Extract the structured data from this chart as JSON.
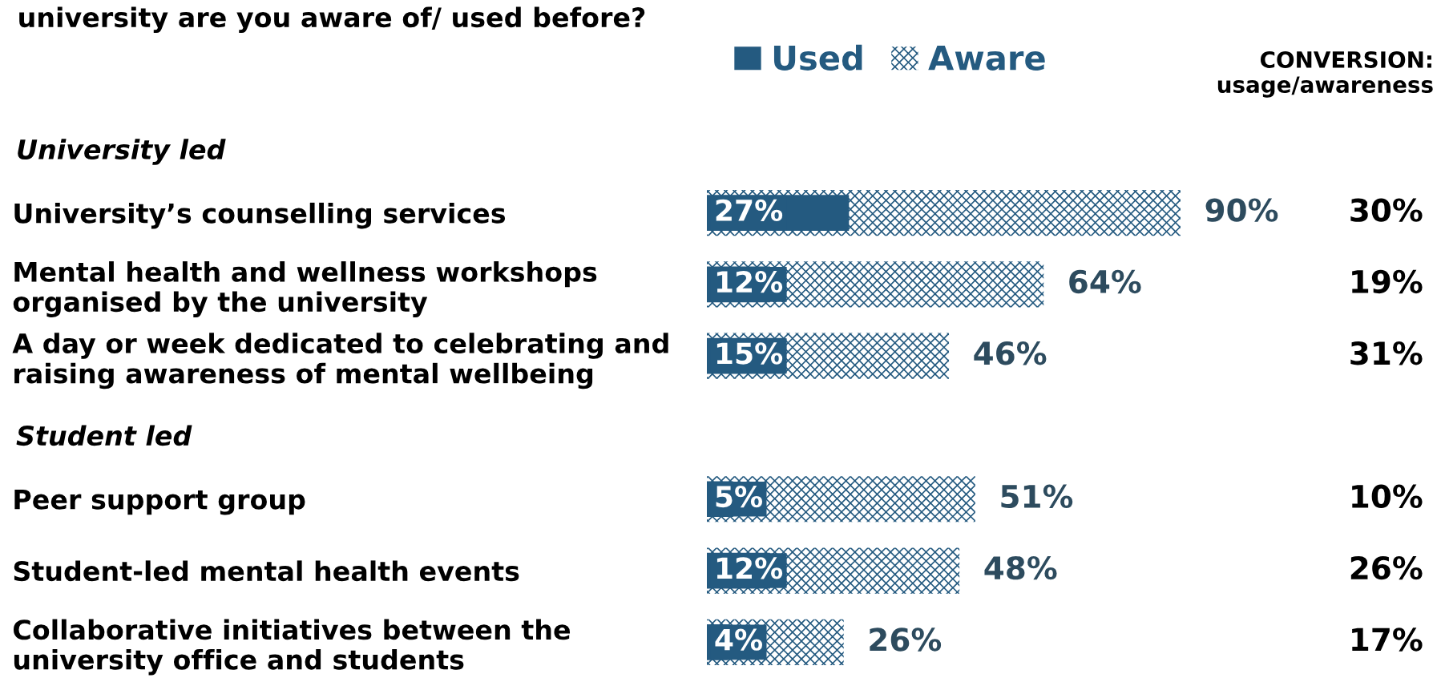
{
  "chart_data": {
    "type": "bar",
    "orientation": "horizontal",
    "title": "university are you aware of/ used before?",
    "categories": [
      null,
      "University’s counselling services",
      "Mental health and wellness workshops\norganised by the university",
      "A day or week dedicated to celebrating and\nraising awareness of mental wellbeing",
      null,
      "Peer support group",
      "Student-led mental health events",
      "Collaborative initiatives between the\nuniversity office and students"
    ],
    "series": [
      {
        "name": "Aware",
        "color": "#245a80",
        "values": [
          null,
          90,
          64,
          46,
          null,
          51,
          48,
          26
        ],
        "value_labels": [
          null,
          "90%",
          "64%",
          "46%",
          null,
          "51%",
          "48%",
          "26%"
        ]
      },
      {
        "name": "Used",
        "color": "#245a80",
        "values": [
          null,
          27,
          12,
          15,
          null,
          5,
          12,
          4
        ],
        "value_labels": [
          null,
          "27%",
          "12%",
          "15%",
          null,
          "5%",
          "12%",
          "4%"
        ]
      }
    ],
    "annotations": [
      "University led",
      "Student led",
      "CONVERSION:\nusage/awareness",
      "30%",
      "19%",
      "31%",
      "10%",
      "26%",
      "17%"
    ],
    "legend": "top"
  }
}
